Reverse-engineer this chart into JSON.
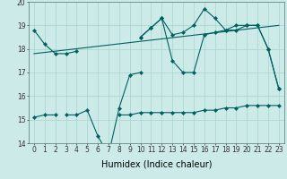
{
  "xlabel": "Humidex (Indice chaleur)",
  "x": [
    0,
    1,
    2,
    3,
    4,
    5,
    6,
    7,
    8,
    9,
    10,
    11,
    12,
    13,
    14,
    15,
    16,
    17,
    18,
    19,
    20,
    21,
    22,
    23
  ],
  "line_upper": [
    18.8,
    18.2,
    17.8,
    17.8,
    17.9,
    null,
    null,
    null,
    null,
    null,
    18.5,
    18.9,
    19.3,
    18.6,
    18.7,
    19.0,
    19.7,
    19.3,
    18.8,
    19.0,
    19.0,
    19.0,
    18.0,
    16.3
  ],
  "line_mid": [
    null,
    null,
    null,
    null,
    null,
    null,
    null,
    null,
    null,
    null,
    18.5,
    18.9,
    19.3,
    17.5,
    17.0,
    17.0,
    18.6,
    18.7,
    18.8,
    18.8,
    19.0,
    19.0,
    18.0,
    16.3
  ],
  "line_lower": [
    null,
    null,
    null,
    15.2,
    15.2,
    15.4,
    14.3,
    13.5,
    15.5,
    16.9,
    17.0,
    null,
    null,
    null,
    null,
    null,
    null,
    null,
    null,
    null,
    null,
    null,
    null,
    null
  ],
  "line_flat": [
    15.1,
    15.2,
    15.2,
    null,
    null,
    null,
    null,
    null,
    15.2,
    15.2,
    15.3,
    15.3,
    15.3,
    15.3,
    15.3,
    15.3,
    15.4,
    15.4,
    15.5,
    15.5,
    15.6,
    15.6,
    15.6,
    15.6
  ],
  "line_trend_x": [
    0,
    23
  ],
  "line_trend_y": [
    17.8,
    19.0
  ],
  "ylim": [
    14,
    20
  ],
  "xlim": [
    -0.5,
    23.5
  ],
  "bg_color": "#cceae7",
  "grid_color": "#aad4d0",
  "line_color": "#006060",
  "tick_fontsize": 5.5,
  "label_fontsize": 7
}
